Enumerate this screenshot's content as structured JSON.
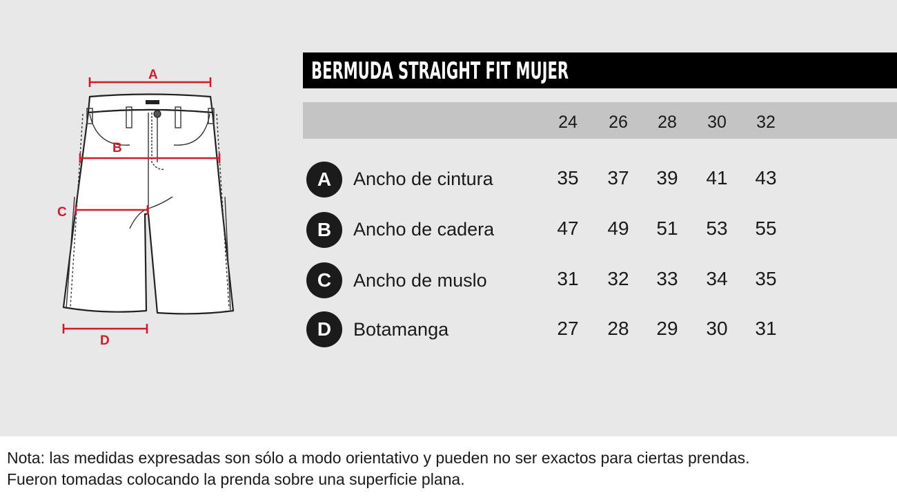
{
  "title": "BERMUDA STRAIGHT FIT MUJER",
  "diagram_labels": {
    "a": "A",
    "b": "B",
    "c": "C",
    "d": "D"
  },
  "sizes": [
    "24",
    "26",
    "28",
    "30",
    "32"
  ],
  "rows": [
    {
      "badge": "A",
      "label": "Ancho de cintura",
      "values": [
        "35",
        "37",
        "39",
        "41",
        "43"
      ]
    },
    {
      "badge": "B",
      "label": "Ancho de cadera",
      "values": [
        "47",
        "49",
        "51",
        "53",
        "55"
      ]
    },
    {
      "badge": "C",
      "label": "Ancho de muslo",
      "values": [
        "31",
        "32",
        "33",
        "34",
        "35"
      ]
    },
    {
      "badge": "D",
      "label": "Botamanga",
      "values": [
        "27",
        "28",
        "29",
        "30",
        "31"
      ]
    }
  ],
  "note": {
    "line1": "Nota: las medidas expresadas son sólo a modo orientativo y pueden no ser exactos para ciertas prendas.",
    "line2": "Fueron tomadas colocando la prenda sobre una superficie plana."
  },
  "colors": {
    "measure_red": "#d11a2a",
    "dark": "#1b1b1b",
    "panel": "#e8e8e8",
    "size_bar": "#c4c4c4"
  }
}
